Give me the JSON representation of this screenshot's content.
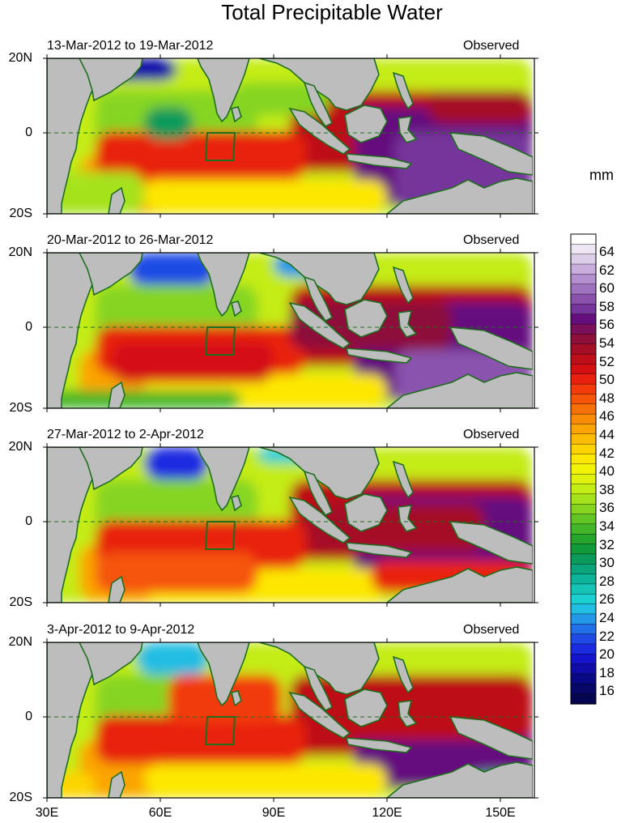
{
  "title": "Total Precipitable Water",
  "units": "mm",
  "panels": [
    {
      "left_label": "13-Mar-2012 to 19-Mar-2012",
      "right_label": "Observed"
    },
    {
      "left_label": "20-Mar-2012 to 26-Mar-2012",
      "right_label": "Observed"
    },
    {
      "left_label": "27-Mar-2012 to 2-Apr-2012",
      "right_label": "Observed"
    },
    {
      "left_label": "3-Apr-2012 to 9-Apr-2012",
      "right_label": "Observed"
    }
  ],
  "lat_labels": [
    "20N",
    "0",
    "20S"
  ],
  "lon_labels": [
    "30E",
    "60E",
    "90E",
    "120E",
    "150E"
  ],
  "colorbar": {
    "labels": [
      "64",
      "62",
      "60",
      "58",
      "56",
      "54",
      "52",
      "50",
      "48",
      "46",
      "44",
      "42",
      "40",
      "38",
      "36",
      "34",
      "32",
      "30",
      "28",
      "26",
      "24",
      "22",
      "20",
      "18",
      "16"
    ],
    "colors_top_to_bottom": [
      "#ffffff",
      "#eee6f2",
      "#dccde9",
      "#c9aedd",
      "#b48fcf",
      "#9f72bf",
      "#8a52ad",
      "#75359a",
      "#650f7f",
      "#7a0f5a",
      "#8d0f3a",
      "#a50f25",
      "#bd0e19",
      "#d40f12",
      "#e8200d",
      "#f23a0b",
      "#f55509",
      "#f77007",
      "#f98b06",
      "#fba404",
      "#fcbc03",
      "#fdd402",
      "#fde704",
      "#f2f206",
      "#dff20d",
      "#c4ec15",
      "#a6e21b",
      "#85d520",
      "#63c525",
      "#42b528",
      "#26a52c",
      "#119a3a",
      "#0b9a5a",
      "#0ca57b",
      "#0eb49a",
      "#15c3b7",
      "#1ccfd0",
      "#22bde3",
      "#2398e9",
      "#2271e8",
      "#1f4be4",
      "#1b2be0",
      "#1514cc",
      "#0f0ca8",
      "#0a0985",
      "#070768",
      "#050550"
    ]
  },
  "map_style": {
    "land_color": "#bdbdbd",
    "coast_color": "#1e6e1e",
    "box_color": "#1e6e1e",
    "equator_line": "dashed"
  }
}
